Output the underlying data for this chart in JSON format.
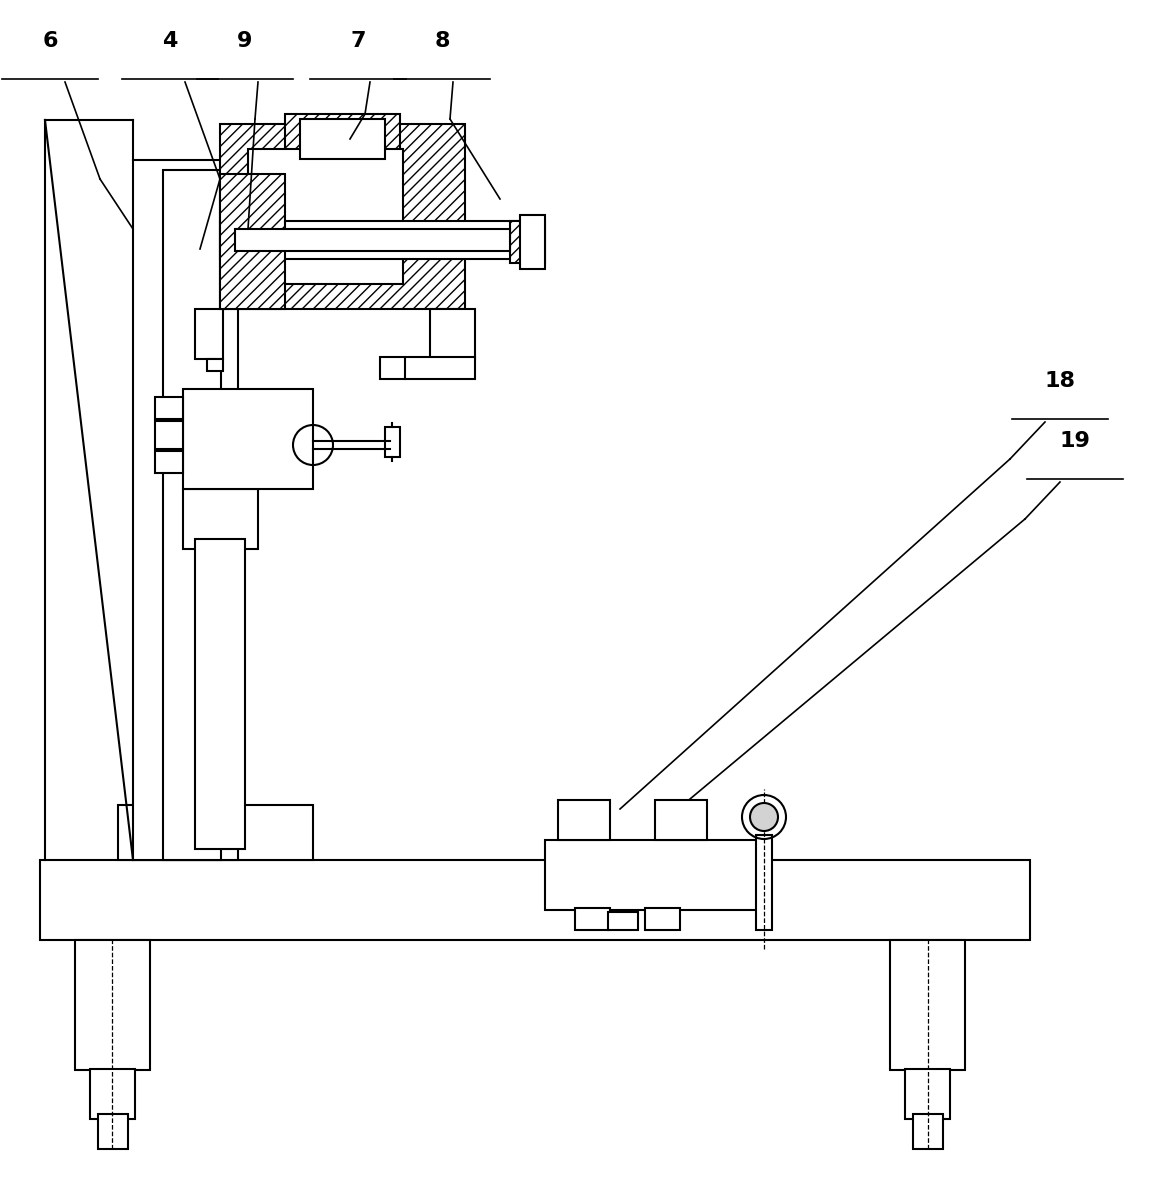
{
  "bg_color": "#ffffff",
  "line_color": "#000000",
  "lw": 1.5,
  "label_fontsize": 16,
  "figsize": [
    11.55,
    11.79
  ],
  "dpi": 100
}
